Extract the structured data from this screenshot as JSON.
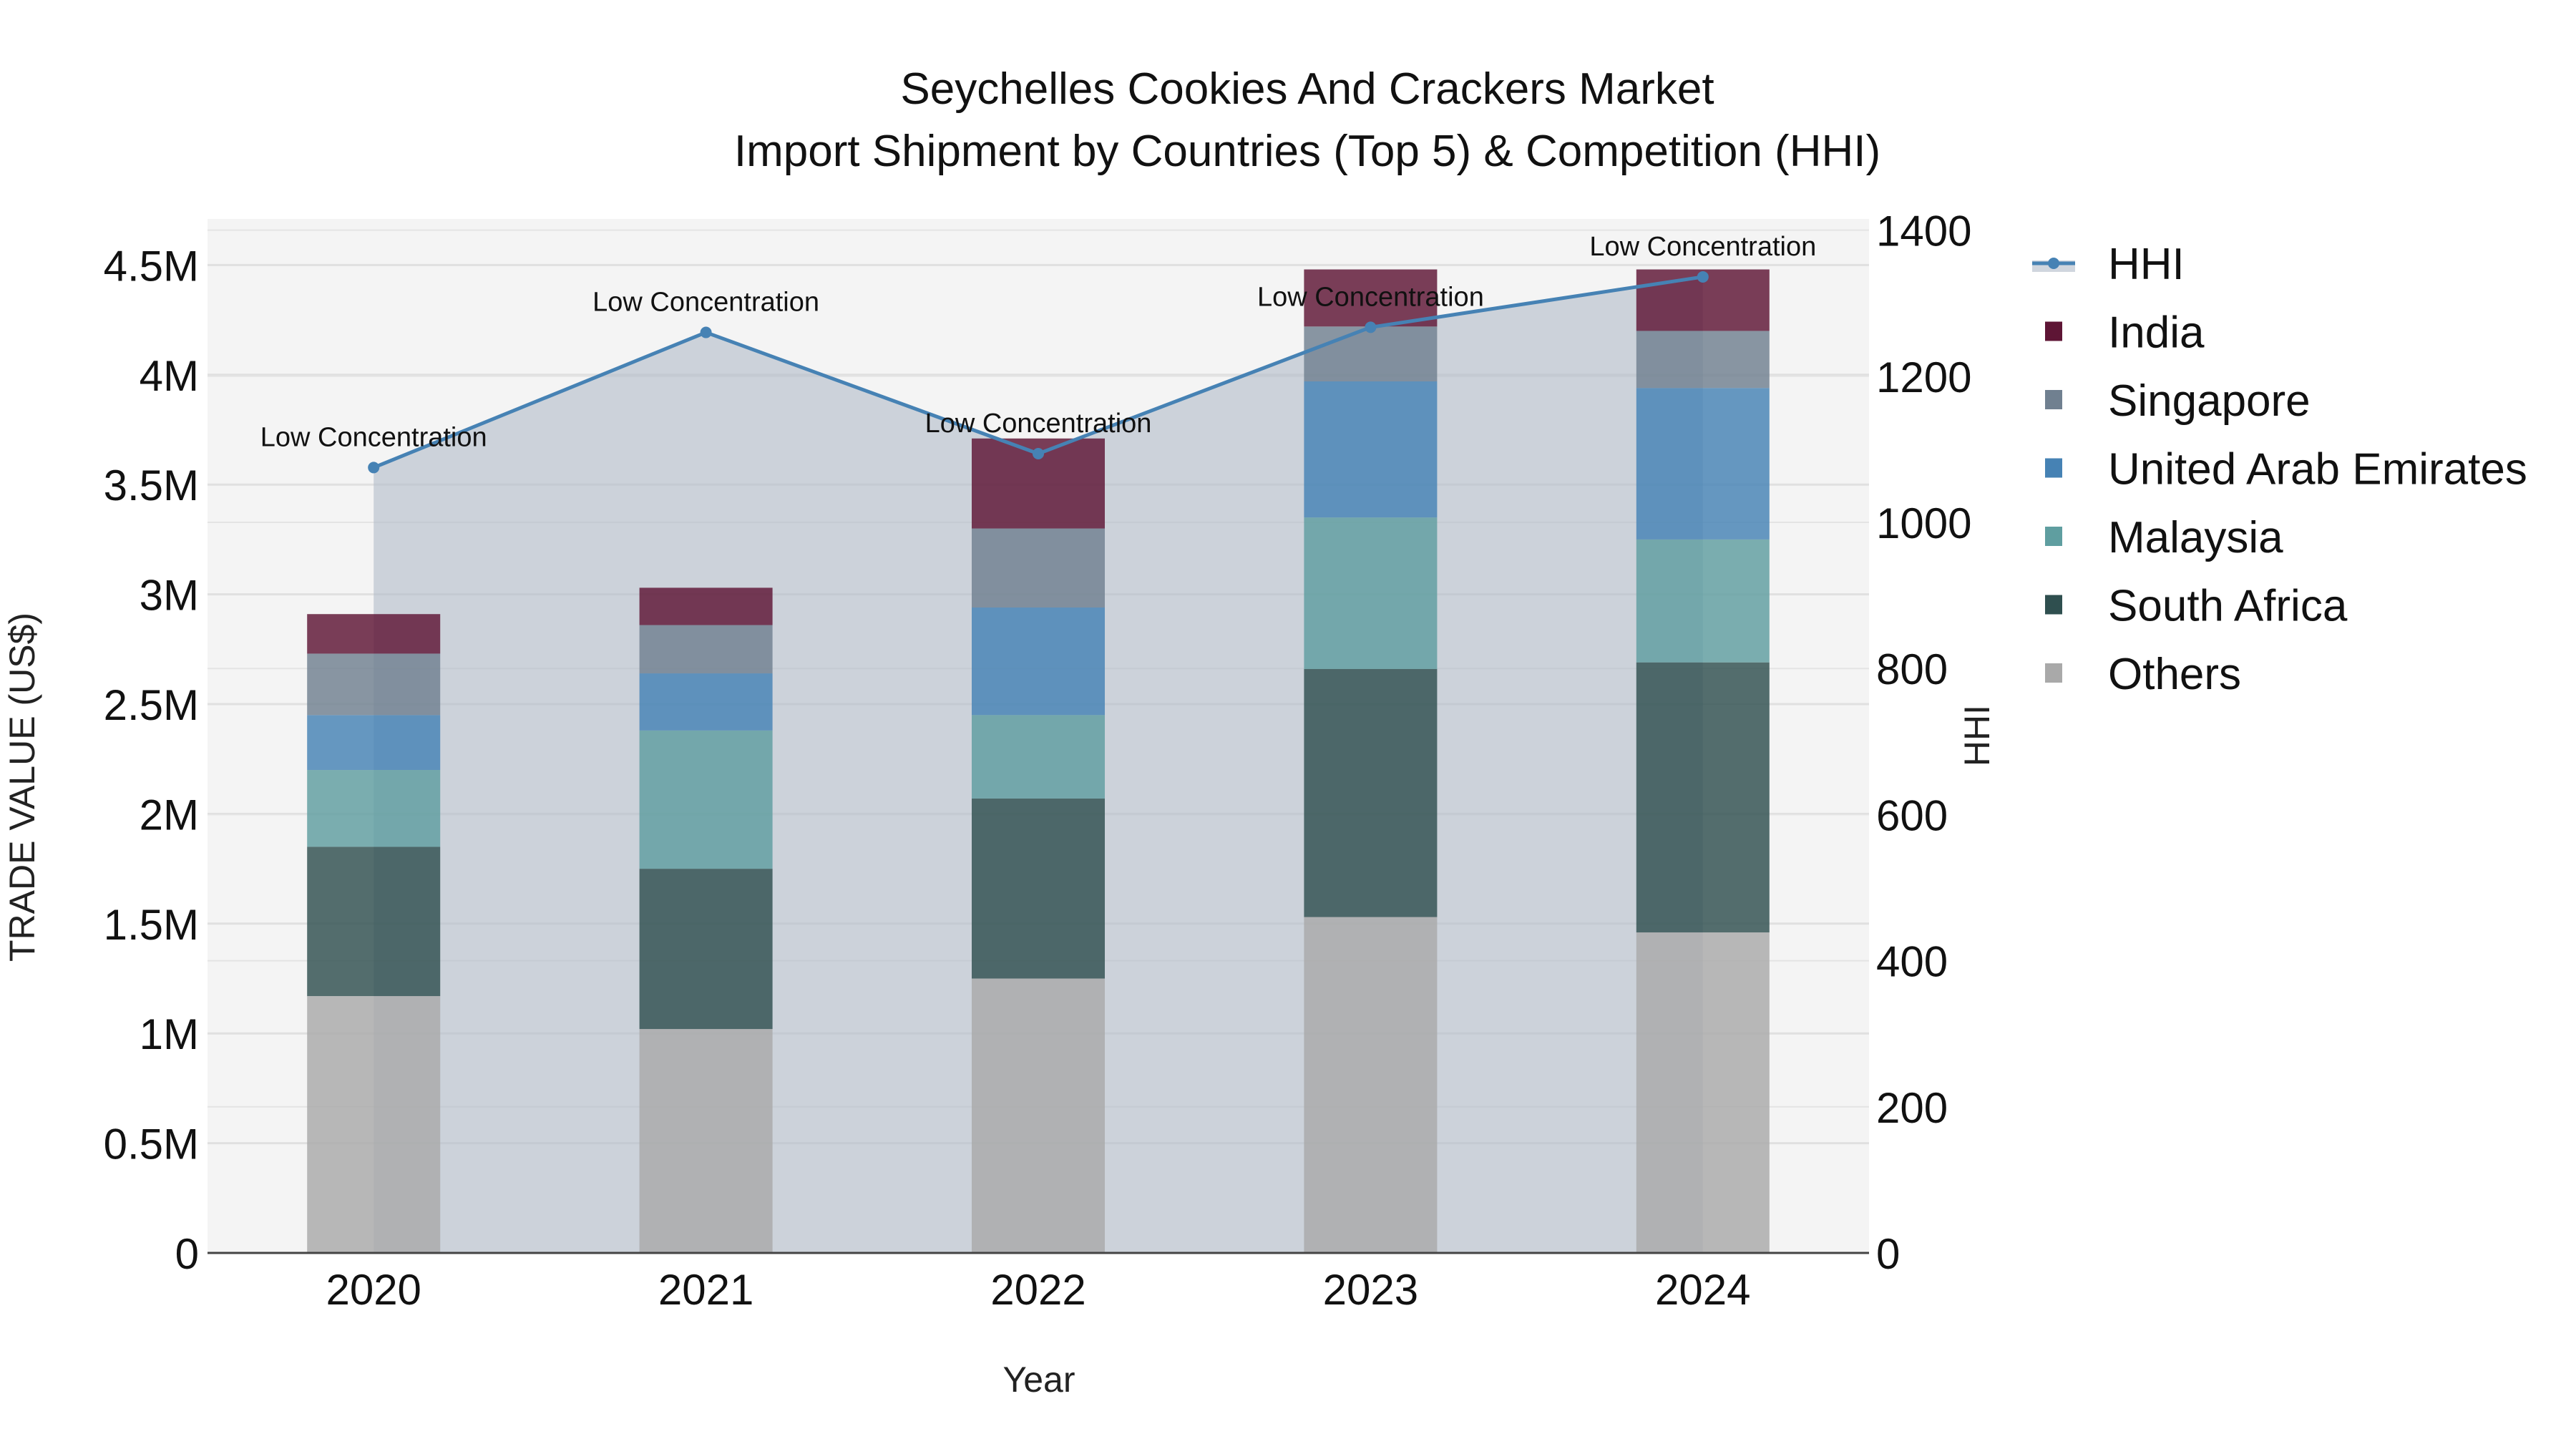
{
  "chart_data": {
    "type": "bar",
    "title": "Seychelles Cookies And Crackers Market",
    "subtitle": "Import Shipment by Countries (Top 5) & Competition (HHI)",
    "xlabel": "Year",
    "ylabel": "TRADE VALUE (US$)",
    "y2label": "HHI",
    "categories": [
      "2020",
      "2021",
      "2022",
      "2023",
      "2024"
    ],
    "ylim": [
      0,
      4700000
    ],
    "y2lim": [
      0,
      1420
    ],
    "yticks": [
      0,
      500000,
      1000000,
      1500000,
      2000000,
      2500000,
      3000000,
      3500000,
      4000000,
      4500000
    ],
    "ytick_labels": [
      "0",
      "0.5M",
      "1M",
      "1.5M",
      "2M",
      "2.5M",
      "3M",
      "3.5M",
      "4M",
      "4.5M"
    ],
    "y2ticks": [
      0,
      200,
      400,
      600,
      800,
      1000,
      1200,
      1400
    ],
    "y2tick_labels": [
      "0",
      "200",
      "400",
      "600",
      "800",
      "1000",
      "1200",
      "1400"
    ],
    "stacked": true,
    "series": [
      {
        "name": "Others",
        "color": "#a9a9a9",
        "values": [
          1170000,
          1020000,
          1250000,
          1530000,
          1460000
        ]
      },
      {
        "name": "South Africa",
        "color": "#2f4f4f",
        "values": [
          680000,
          730000,
          820000,
          1130000,
          1230000
        ]
      },
      {
        "name": "Malaysia",
        "color": "#5f9ea0",
        "values": [
          350000,
          630000,
          380000,
          690000,
          560000
        ]
      },
      {
        "name": "United Arab Emirates",
        "color": "#4682b4",
        "values": [
          250000,
          260000,
          490000,
          620000,
          690000
        ]
      },
      {
        "name": "Singapore",
        "color": "#708090",
        "values": [
          280000,
          220000,
          360000,
          250000,
          260000
        ]
      },
      {
        "name": "India",
        "color": "#5e1535",
        "values": [
          180000,
          170000,
          410000,
          260000,
          280000
        ]
      }
    ],
    "line_series": {
      "name": "HHI",
      "color": "#4682b4",
      "fill": "rgba(176,186,200,0.6)",
      "axis": "right",
      "values": [
        1075,
        1260,
        1094,
        1267,
        1336
      ],
      "annotations": [
        "Low Concentration",
        "Low Concentration",
        "Low Concentration",
        "Low Concentration",
        "Low Concentration"
      ]
    },
    "legend": {
      "position": "right",
      "entries": [
        "HHI",
        "India",
        "Singapore",
        "United Arab Emirates",
        "Malaysia",
        "South Africa",
        "Others"
      ]
    },
    "grid": true
  }
}
